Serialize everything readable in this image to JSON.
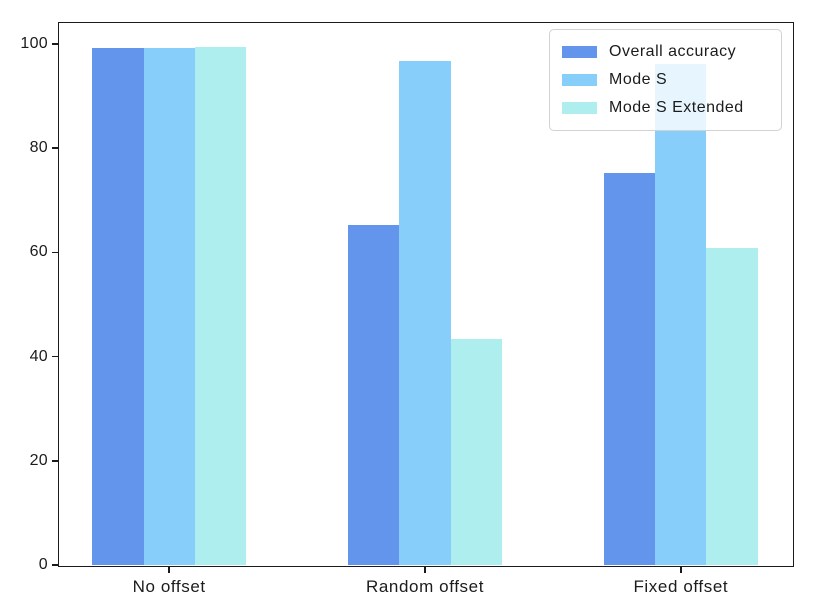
{
  "figure": {
    "background": "#ffffff",
    "axis_color": "#1a1a1a",
    "tick_label_color": "#1c1c1c"
  },
  "chart_data": {
    "type": "bar",
    "title": "",
    "xlabel": "",
    "ylabel": "",
    "categories": [
      "No offset",
      "Random offset",
      "Fixed offset"
    ],
    "series": [
      {
        "name": "Overall accuracy",
        "color": "#6495ED",
        "values": [
          99.3,
          65.3,
          75.3
        ]
      },
      {
        "name": "Mode S",
        "color": "#87CEFA",
        "values": [
          99.2,
          96.8,
          96.1
        ]
      },
      {
        "name": "Mode S Extended",
        "color": "#AFEEEE",
        "values": [
          99.4,
          43.3,
          60.9
        ]
      }
    ],
    "yticks": [
      0,
      20,
      40,
      60,
      80,
      100
    ],
    "ylim": [
      0,
      104.2
    ],
    "xlim": [
      -0.4345,
      2.4345
    ],
    "bar_width_units": 0.2,
    "grid": false,
    "legend": {
      "position": "upper right",
      "frame": true,
      "frame_alpha": 0.8
    }
  }
}
